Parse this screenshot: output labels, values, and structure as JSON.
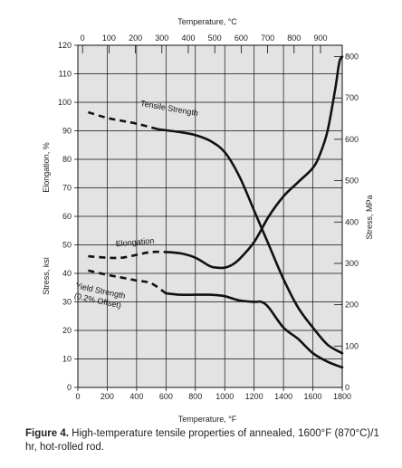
{
  "chart_data": {
    "type": "line",
    "top_axis_title": "Temperature, °C",
    "bottom_axis_title": "Temperature, °F",
    "left_axis_title": "Stress, ksi",
    "left_axis_title_upper": "Elongation, %",
    "right_axis_title": "Stress, MPa",
    "x_range_f": [
      0,
      1800
    ],
    "x_ticks_f": [
      0,
      200,
      400,
      600,
      800,
      1000,
      1200,
      1400,
      1600,
      1800
    ],
    "x_ticks_c": [
      0,
      100,
      200,
      300,
      400,
      500,
      600,
      700,
      800,
      900
    ],
    "y_range_ksi": [
      0,
      120
    ],
    "y_ticks_ksi": [
      0,
      10,
      20,
      30,
      40,
      50,
      60,
      70,
      80,
      90,
      100,
      110,
      120
    ],
    "y_ticks_mpa": [
      0,
      100,
      200,
      300,
      400,
      500,
      600,
      700,
      800
    ],
    "grid": true,
    "series": [
      {
        "name": "Tensile Strength",
        "label_f": 620,
        "label_ksi": 97,
        "label_rotate": 10,
        "dashed_until_f": 550,
        "points": [
          [
            70,
            96.5
          ],
          [
            200,
            94.5
          ],
          [
            300,
            93.5
          ],
          [
            400,
            92.5
          ],
          [
            550,
            90.5
          ],
          [
            700,
            89.5
          ],
          [
            800,
            88.5
          ],
          [
            900,
            86.5
          ],
          [
            1000,
            82.5
          ],
          [
            1100,
            74
          ],
          [
            1200,
            62
          ],
          [
            1300,
            50
          ],
          [
            1400,
            38
          ],
          [
            1500,
            28
          ],
          [
            1600,
            21
          ],
          [
            1700,
            15
          ],
          [
            1800,
            12
          ]
        ]
      },
      {
        "name": "Elongation",
        "label_f": 390,
        "label_ksi": 50,
        "label_rotate": -5,
        "dashed_until_f": 550,
        "points": [
          [
            70,
            46
          ],
          [
            200,
            45.5
          ],
          [
            300,
            45.5
          ],
          [
            400,
            46.5
          ],
          [
            500,
            47.5
          ],
          [
            600,
            47.5
          ],
          [
            700,
            47
          ],
          [
            800,
            45.5
          ],
          [
            900,
            42.5
          ],
          [
            950,
            42
          ],
          [
            1000,
            42
          ],
          [
            1050,
            43
          ],
          [
            1100,
            45
          ],
          [
            1200,
            51
          ],
          [
            1300,
            60
          ],
          [
            1400,
            67
          ],
          [
            1500,
            72
          ],
          [
            1600,
            77
          ],
          [
            1650,
            82
          ],
          [
            1700,
            90
          ],
          [
            1750,
            104
          ],
          [
            1780,
            114
          ],
          [
            1800,
            116
          ]
        ]
      },
      {
        "name": "Yield Strength",
        "label_f": 150,
        "label_ksi": 33,
        "label_rotate": 12,
        "sublabel": "(0.2% Offset)",
        "dashed_until_f": 550,
        "points": [
          [
            70,
            41
          ],
          [
            200,
            39.5
          ],
          [
            300,
            38.5
          ],
          [
            400,
            37.5
          ],
          [
            500,
            36.5
          ],
          [
            600,
            33
          ],
          [
            700,
            32.5
          ],
          [
            800,
            32.5
          ],
          [
            900,
            32.5
          ],
          [
            1000,
            32
          ],
          [
            1100,
            30.5
          ],
          [
            1200,
            30
          ],
          [
            1250,
            30
          ],
          [
            1300,
            28
          ],
          [
            1400,
            21
          ],
          [
            1500,
            17
          ],
          [
            1600,
            12
          ],
          [
            1700,
            9
          ],
          [
            1800,
            7
          ]
        ]
      }
    ]
  },
  "caption": {
    "figure_label": "Figure 4.",
    "text": "High-temperature tensile properties of annealed, 1600°F (870°C)/1 hr, hot-rolled rod."
  }
}
